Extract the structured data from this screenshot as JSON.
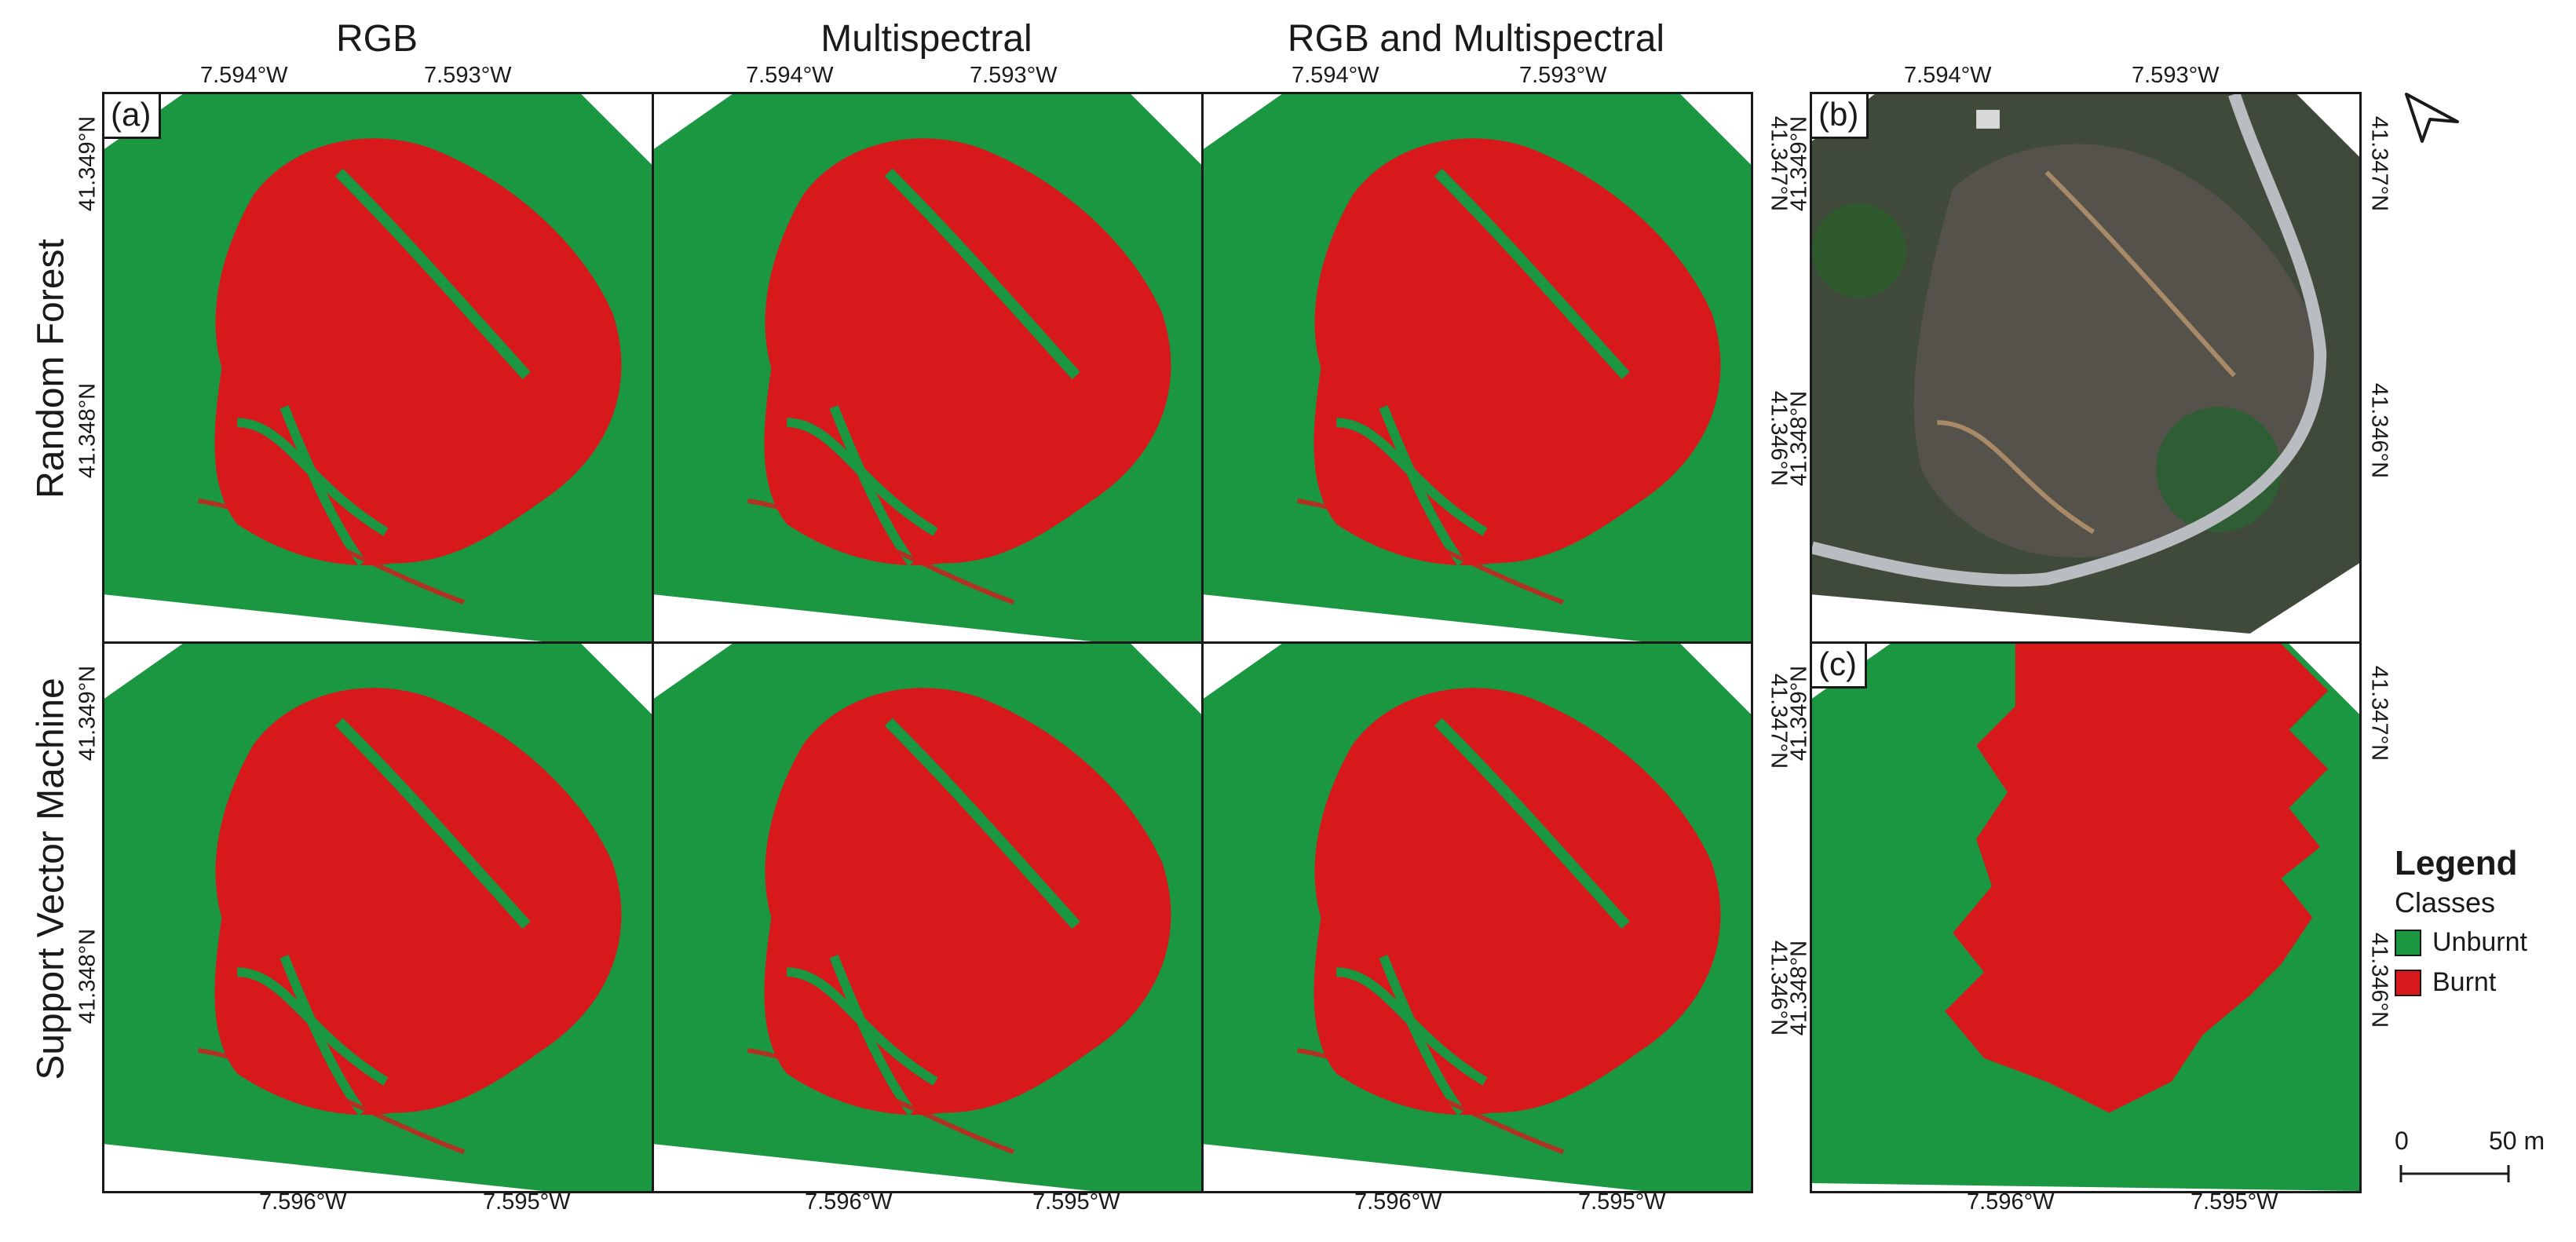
{
  "columns": [
    "RGB",
    "Multispectral",
    "RGB and Multispectral"
  ],
  "rows": [
    "Random Forest",
    "Support Vector Machine"
  ],
  "panel_labels": {
    "a": "(a)",
    "b": "(b)",
    "c": "(c)"
  },
  "top_lon_ticks": [
    "7.594°W",
    "7.593°W"
  ],
  "bottom_lon_ticks": [
    "7.596°W",
    "7.595°W"
  ],
  "left_lat_ticks": [
    "41.349°N",
    "41.348°N"
  ],
  "right_lat_ticks": [
    "41.347°N",
    "41.346°N"
  ],
  "legend": {
    "title": "Legend",
    "subtitle": "Classes",
    "items": [
      {
        "label": "Unburnt",
        "color": "#1b9641"
      },
      {
        "label": "Burnt",
        "color": "#d7191c"
      }
    ]
  },
  "scale": {
    "start": "0",
    "end": "50 m"
  },
  "north_arrow_icon": "north-arrow-icon"
}
